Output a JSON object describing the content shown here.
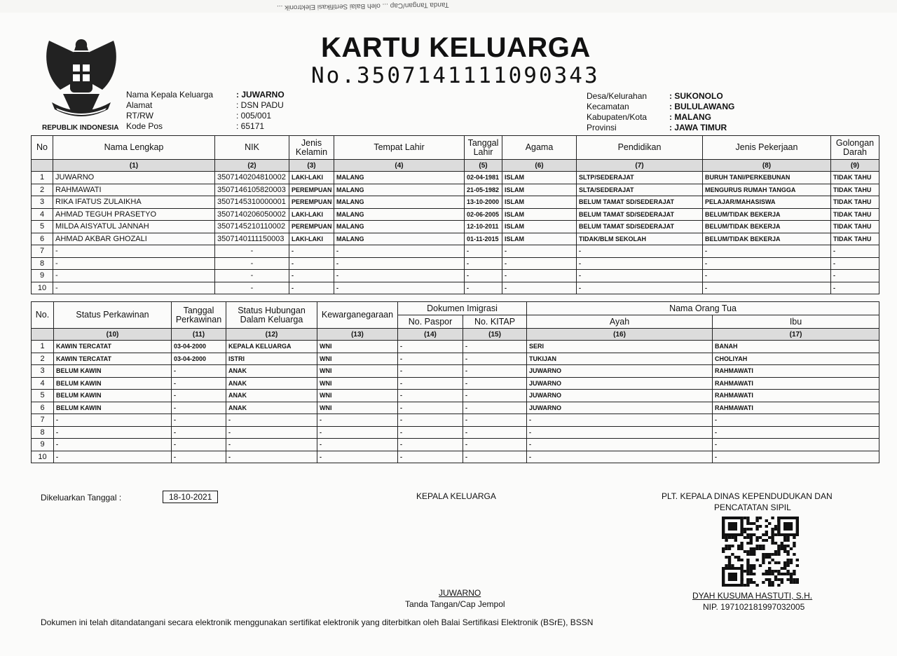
{
  "mirror_text": "Tanda Tangan/Cap ... oleh Balai Sertifikasi Elektronik ...",
  "header": {
    "title": "KARTU KELUARGA",
    "number": "No.3507141111090343",
    "emblem_caption": "REPUBLIK INDONESIA",
    "left_fields": [
      {
        "label": "Nama Kepala Keluarga",
        "value": ": JUWARNO"
      },
      {
        "label": "Alamat",
        "value": ": DSN PADU"
      },
      {
        "label": "RT/RW",
        "value": ": 005/001"
      },
      {
        "label": "Kode Pos",
        "value": ": 65171"
      }
    ],
    "right_fields": [
      {
        "label": "Desa/Kelurahan",
        "value": ": SUKONOLO"
      },
      {
        "label": "Kecamatan",
        "value": ": BULULAWANG"
      },
      {
        "label": "Kabupaten/Kota",
        "value": ": MALANG"
      },
      {
        "label": "Provinsi",
        "value": ": JAWA TIMUR"
      }
    ]
  },
  "table1": {
    "headers": [
      "No",
      "Nama Lengkap",
      "NIK",
      "Jenis Kelamin",
      "Tempat Lahir",
      "Tanggal Lahir",
      "Agama",
      "Pendidikan",
      "Jenis Pekerjaan",
      "Golongan Darah"
    ],
    "col_numbers": [
      "",
      "(1)",
      "(2)",
      "(3)",
      "(4)",
      "(5)",
      "(6)",
      "(7)",
      "(8)",
      "(9)"
    ],
    "rows": [
      [
        "1",
        "JUWARNO",
        "3507140204810002",
        "LAKI-LAKI",
        "MALANG",
        "02-04-1981",
        "ISLAM",
        "SLTP/SEDERAJAT",
        "BURUH TANI/PERKEBUNAN",
        "TIDAK TAHU"
      ],
      [
        "2",
        "RAHMAWATI",
        "3507146105820003",
        "PEREMPUAN",
        "MALANG",
        "21-05-1982",
        "ISLAM",
        "SLTA/SEDERAJAT",
        "MENGURUS RUMAH TANGGA",
        "TIDAK TAHU"
      ],
      [
        "3",
        "RIKA IFATUS ZULAIKHA",
        "3507145310000001",
        "PEREMPUAN",
        "MALANG",
        "13-10-2000",
        "ISLAM",
        "BELUM TAMAT SD/SEDERAJAT",
        "PELAJAR/MAHASISWA",
        "TIDAK TAHU"
      ],
      [
        "4",
        "AHMAD TEGUH PRASETYO",
        "3507140206050002",
        "LAKI-LAKI",
        "MALANG",
        "02-06-2005",
        "ISLAM",
        "BELUM TAMAT SD/SEDERAJAT",
        "BELUM/TIDAK BEKERJA",
        "TIDAK TAHU"
      ],
      [
        "5",
        "MILDA AISYATUL JANNAH",
        "3507145210110002",
        "PEREMPUAN",
        "MALANG",
        "12-10-2011",
        "ISLAM",
        "BELUM TAMAT SD/SEDERAJAT",
        "BELUM/TIDAK BEKERJA",
        "TIDAK TAHU"
      ],
      [
        "6",
        "AHMAD AKBAR GHOZALI",
        "3507140111150003",
        "LAKI-LAKI",
        "MALANG",
        "01-11-2015",
        "ISLAM",
        "TIDAK/BLM SEKOLAH",
        "BELUM/TIDAK BEKERJA",
        "TIDAK TAHU"
      ],
      [
        "7",
        "-",
        "-",
        "-",
        "-",
        "-",
        "-",
        "-",
        "-",
        "-"
      ],
      [
        "8",
        "-",
        "-",
        "-",
        "-",
        "-",
        "-",
        "-",
        "-",
        "-"
      ],
      [
        "9",
        "-",
        "-",
        "-",
        "-",
        "-",
        "-",
        "-",
        "-",
        "-"
      ],
      [
        "10",
        "-",
        "-",
        "-",
        "-",
        "-",
        "-",
        "-",
        "-",
        "-"
      ]
    ]
  },
  "table2": {
    "headers": {
      "no": "No.",
      "status": "Status Perkawinan",
      "tanggal": "Tanggal Perkawinan",
      "hubungan": "Status Hubungan Dalam Keluarga",
      "kewarganegaraan": "Kewarganegaraan",
      "dokumen": "Dokumen Imigrasi",
      "paspor": "No. Paspor",
      "kitap": "No. KITAP",
      "orangtua": "Nama Orang Tua",
      "ayah": "Ayah",
      "ibu": "Ibu"
    },
    "col_numbers": [
      "",
      "(10)",
      "(11)",
      "(12)",
      "(13)",
      "(14)",
      "(15)",
      "(16)",
      "(17)"
    ],
    "rows": [
      [
        "1",
        "KAWIN TERCATAT",
        "03-04-2000",
        "KEPALA KELUARGA",
        "WNI",
        "-",
        "-",
        "SERI",
        "BANAH"
      ],
      [
        "2",
        "KAWIN TERCATAT",
        "03-04-2000",
        "ISTRI",
        "WNI",
        "-",
        "-",
        "TUKIJAN",
        "CHOLIYAH"
      ],
      [
        "3",
        "BELUM KAWIN",
        "-",
        "ANAK",
        "WNI",
        "-",
        "-",
        "JUWARNO",
        "RAHMAWATI"
      ],
      [
        "4",
        "BELUM KAWIN",
        "-",
        "ANAK",
        "WNI",
        "-",
        "-",
        "JUWARNO",
        "RAHMAWATI"
      ],
      [
        "5",
        "BELUM KAWIN",
        "-",
        "ANAK",
        "WNI",
        "-",
        "-",
        "JUWARNO",
        "RAHMAWATI"
      ],
      [
        "6",
        "BELUM KAWIN",
        "-",
        "ANAK",
        "WNI",
        "-",
        "-",
        "JUWARNO",
        "RAHMAWATI"
      ],
      [
        "7",
        "-",
        "-",
        "-",
        "-",
        "-",
        "-",
        "-",
        "-"
      ],
      [
        "8",
        "-",
        "-",
        "-",
        "-",
        "-",
        "-",
        "-",
        "-"
      ],
      [
        "9",
        "-",
        "-",
        "-",
        "-",
        "-",
        "-",
        "-",
        "-"
      ],
      [
        "10",
        "-",
        "-",
        "-",
        "-",
        "-",
        "-",
        "-",
        "-"
      ]
    ]
  },
  "footer": {
    "issued_label": "Dikeluarkan Tanggal  :",
    "issued_date": "18-10-2021",
    "head_title": "KEPALA KELUARGA",
    "head_name": "JUWARNO",
    "head_sign_label": "Tanda Tangan/Cap Jempol",
    "official_title_1": "PLT. KEPALA DINAS KEPENDUDUKAN DAN",
    "official_title_2": "PENCATATAN SIPIL",
    "official_name": "DYAH KUSUMA HASTUTI, S.H.",
    "official_nip": "NIP. 197102181997032005",
    "disclaimer": "Dokumen ini telah ditandatangani secara elektronik menggunakan sertifikat elektronik yang diterbitkan oleh Balai Sertifikasi Elektronik (BSrE), BSSN"
  }
}
